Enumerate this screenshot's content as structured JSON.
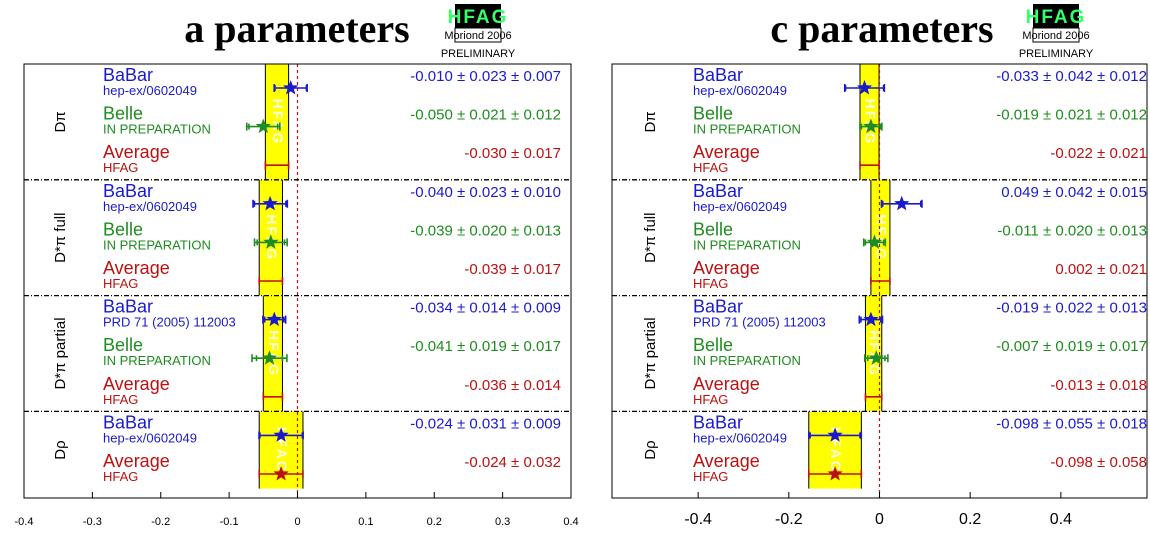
{
  "colors": {
    "blue": "#1a1acc",
    "green": "#1e8c1e",
    "red": "#bb1111",
    "yellow": "#ffff00",
    "logo_green": "#33ff66"
  },
  "logo": {
    "name": "HFAG",
    "conf": "Moriond 2006",
    "status": "PRELIMINARY"
  },
  "chart_data": [
    {
      "type": "forest",
      "title": "a parameters",
      "xlim": [
        -0.4,
        0.4
      ],
      "xticks": [
        "-0.4",
        "-0.3",
        "-0.2",
        "-0.1",
        "0",
        "0.1",
        "0.2",
        "0.3",
        "0.4"
      ],
      "xtick_values": [
        -0.4,
        -0.3,
        -0.2,
        -0.1,
        0,
        0.1,
        0.2,
        0.3,
        0.4
      ],
      "groups": [
        {
          "label": "Dπ",
          "entries": [
            {
              "exp": "BaBar",
              "ref": "hep-ex/0602049",
              "kind": "babar",
              "value": -0.01,
              "stat": 0.023,
              "syst": 0.007,
              "text": "-0.010 ± 0.023 ± 0.007"
            },
            {
              "exp": "Belle",
              "ref": "IN PREPARATION",
              "kind": "belle",
              "value": -0.05,
              "stat": 0.021,
              "syst": 0.012,
              "text": "-0.050 ± 0.021 ± 0.012"
            },
            {
              "exp": "Average",
              "ref": "HFAG",
              "kind": "average",
              "value": -0.03,
              "err": 0.017,
              "text": "-0.030 ± 0.017"
            }
          ]
        },
        {
          "label": "D*π full",
          "entries": [
            {
              "exp": "BaBar",
              "ref": "hep-ex/0602049",
              "kind": "babar",
              "value": -0.04,
              "stat": 0.023,
              "syst": 0.01,
              "text": "-0.040 ± 0.023 ± 0.010"
            },
            {
              "exp": "Belle",
              "ref": "IN PREPARATION",
              "kind": "belle",
              "value": -0.039,
              "stat": 0.02,
              "syst": 0.013,
              "text": "-0.039 ± 0.020 ± 0.013"
            },
            {
              "exp": "Average",
              "ref": "HFAG",
              "kind": "average",
              "value": -0.039,
              "err": 0.017,
              "text": "-0.039 ± 0.017"
            }
          ]
        },
        {
          "label": "D*π partial",
          "entries": [
            {
              "exp": "BaBar",
              "ref": "PRD 71 (2005) 112003",
              "kind": "babar",
              "value": -0.034,
              "stat": 0.014,
              "syst": 0.009,
              "text": "-0.034 ± 0.014 ± 0.009"
            },
            {
              "exp": "Belle",
              "ref": "IN PREPARATION",
              "kind": "belle",
              "value": -0.041,
              "stat": 0.019,
              "syst": 0.017,
              "text": "-0.041 ± 0.019 ± 0.017"
            },
            {
              "exp": "Average",
              "ref": "HFAG",
              "kind": "average",
              "value": -0.036,
              "err": 0.014,
              "text": "-0.036 ± 0.014"
            }
          ]
        },
        {
          "label": "Dρ",
          "entries": [
            {
              "exp": "BaBar",
              "ref": "hep-ex/0602049",
              "kind": "babar",
              "value": -0.024,
              "stat": 0.031,
              "syst": 0.009,
              "text": "-0.024 ± 0.031 ± 0.009"
            },
            {
              "exp": "Average",
              "ref": "HFAG",
              "kind": "average",
              "value": -0.024,
              "err": 0.032,
              "text": "-0.024 ± 0.032"
            }
          ]
        }
      ]
    },
    {
      "type": "forest",
      "title": "c parameters",
      "xlim": [
        -0.59,
        0.59
      ],
      "xticks": [
        "-0.4",
        "-0.2",
        "0",
        "0.2",
        "0.4"
      ],
      "xtick_values": [
        -0.4,
        -0.2,
        0,
        0.2,
        0.4
      ],
      "groups": [
        {
          "label": "Dπ",
          "entries": [
            {
              "exp": "BaBar",
              "ref": "hep-ex/0602049",
              "kind": "babar",
              "value": -0.033,
              "stat": 0.042,
              "syst": 0.012,
              "text": "-0.033 ± 0.042 ± 0.012"
            },
            {
              "exp": "Belle",
              "ref": "IN PREPARATION",
              "kind": "belle",
              "value": -0.019,
              "stat": 0.021,
              "syst": 0.012,
              "text": "-0.019 ± 0.021 ± 0.012"
            },
            {
              "exp": "Average",
              "ref": "HFAG",
              "kind": "average",
              "value": -0.022,
              "err": 0.021,
              "text": "-0.022 ± 0.021"
            }
          ]
        },
        {
          "label": "D*π full",
          "entries": [
            {
              "exp": "BaBar",
              "ref": "hep-ex/0602049",
              "kind": "babar",
              "value": 0.049,
              "stat": 0.042,
              "syst": 0.015,
              "text": "0.049 ± 0.042 ± 0.015"
            },
            {
              "exp": "Belle",
              "ref": "IN PREPARATION",
              "kind": "belle",
              "value": -0.011,
              "stat": 0.02,
              "syst": 0.013,
              "text": "-0.011 ± 0.020 ± 0.013"
            },
            {
              "exp": "Average",
              "ref": "HFAG",
              "kind": "average",
              "value": 0.002,
              "err": 0.021,
              "text": "0.002 ± 0.021"
            }
          ]
        },
        {
          "label": "D*π partial",
          "entries": [
            {
              "exp": "BaBar",
              "ref": "PRD 71 (2005) 112003",
              "kind": "babar",
              "value": -0.019,
              "stat": 0.022,
              "syst": 0.013,
              "text": "-0.019 ± 0.022 ± 0.013"
            },
            {
              "exp": "Belle",
              "ref": "IN PREPARATION",
              "kind": "belle",
              "value": -0.007,
              "stat": 0.019,
              "syst": 0.017,
              "text": "-0.007 ± 0.019 ± 0.017"
            },
            {
              "exp": "Average",
              "ref": "HFAG",
              "kind": "average",
              "value": -0.013,
              "err": 0.018,
              "text": "-0.013 ± 0.018"
            }
          ]
        },
        {
          "label": "Dρ",
          "entries": [
            {
              "exp": "BaBar",
              "ref": "hep-ex/0602049",
              "kind": "babar",
              "value": -0.098,
              "stat": 0.055,
              "syst": 0.018,
              "text": "-0.098 ± 0.055 ± 0.018"
            },
            {
              "exp": "Average",
              "ref": "HFAG",
              "kind": "average",
              "value": -0.098,
              "err": 0.058,
              "text": "-0.098 ± 0.058"
            }
          ]
        }
      ]
    }
  ]
}
